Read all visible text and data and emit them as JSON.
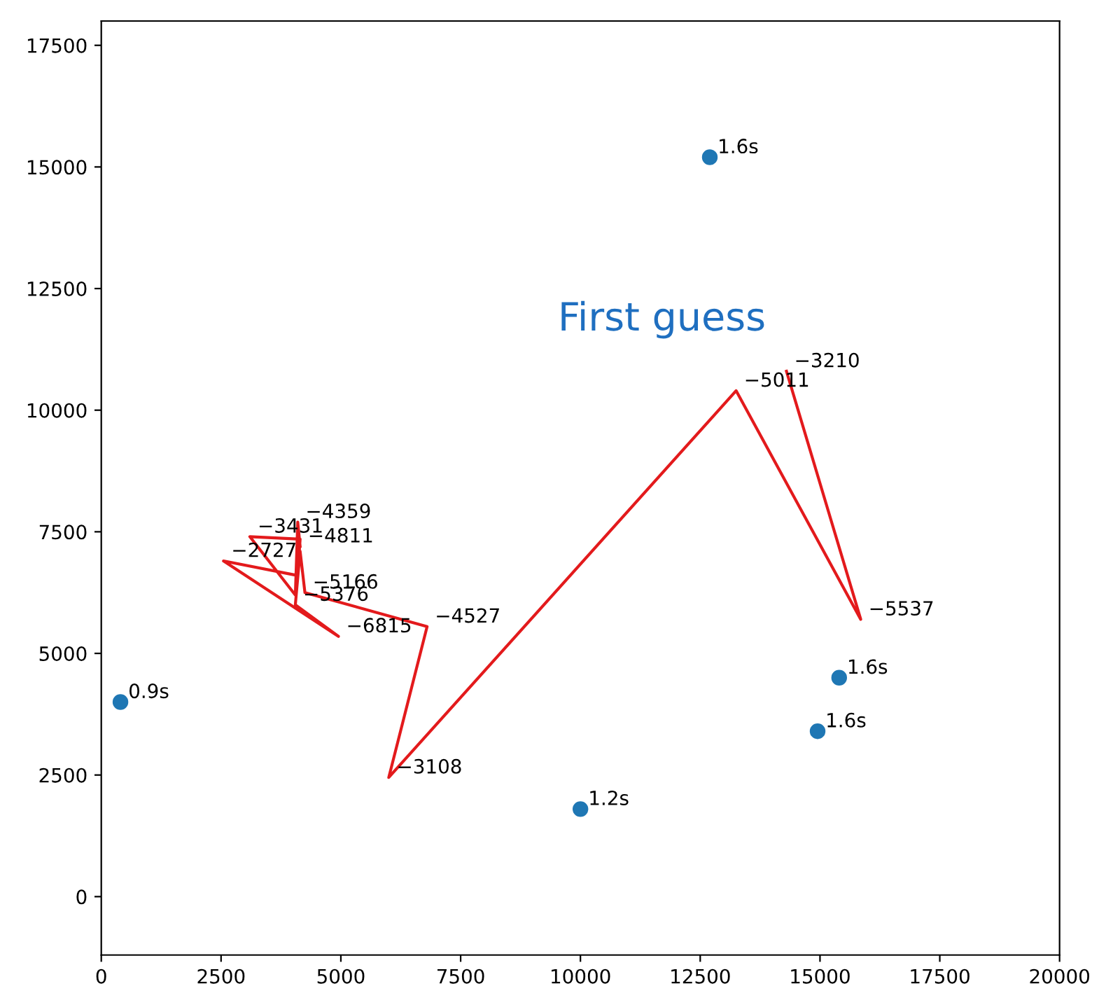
{
  "chart_data": {
    "type": "scatter",
    "annotations": [
      "First guess",
      {
        "text": "−4811",
        "x": 4150,
        "y": 7200
      },
      {
        "text": "−4359",
        "x": 4100,
        "y": 7700
      },
      {
        "text": "−3431",
        "x": 3100,
        "y": 7400
      },
      {
        "text": "−2727",
        "x": 2550,
        "y": 6900
      },
      {
        "text": "−6815",
        "x": 4950,
        "y": 5350
      },
      {
        "text": "−5376",
        "x": 4050,
        "y": 6000
      },
      {
        "text": "−5166",
        "x": 4250,
        "y": 6250
      },
      {
        "text": "−4527",
        "x": 6800,
        "y": 5550
      },
      {
        "text": "−3108",
        "x": 6000,
        "y": 2450
      },
      {
        "text": "−5011",
        "x": 13250,
        "y": 10400
      },
      {
        "text": "−5537",
        "x": 15850,
        "y": 5700
      },
      {
        "text": "−3210",
        "x": 14300,
        "y": 10800
      },
      {
        "text": "0.9s",
        "x": 400,
        "y": 4000
      },
      {
        "text": "1.2s",
        "x": 10000,
        "y": 1800
      },
      {
        "text": "1.6s",
        "x": 12700,
        "y": 15200
      },
      {
        "text": "1.6s",
        "x": 15400,
        "y": 4500
      },
      {
        "text": "1.6s",
        "x": 14950,
        "y": 3400
      }
    ],
    "series": [
      {
        "type": "line",
        "color": "#e31a1c",
        "marker": "none",
        "x": [
          4150,
          4100,
          4050,
          3100,
          4150,
          4100,
          2550,
          4950,
          4050,
          4150,
          4250,
          6800,
          6000,
          13250,
          15850,
          14300
        ],
        "values": [
          7200,
          7700,
          6200,
          7400,
          7350,
          6600,
          6900,
          5350,
          6000,
          7100,
          6250,
          5550,
          2450,
          10400,
          5700,
          10800
        ]
      },
      {
        "color": "#1f77b4",
        "marker": "circle",
        "x": [
          400,
          10000,
          12700,
          15400,
          14950
        ],
        "values": [
          4000,
          1800,
          15200,
          4500,
          3400
        ]
      }
    ],
    "xlim": [
      0,
      20000
    ],
    "ylim": [
      -1200,
      18000
    ],
    "xticks": [
      0,
      2500,
      5000,
      7500,
      10000,
      12500,
      15000,
      17500,
      20000
    ],
    "yticks": [
      0,
      2500,
      5000,
      7500,
      10000,
      12500,
      15000,
      17500
    ],
    "grid": false
  }
}
